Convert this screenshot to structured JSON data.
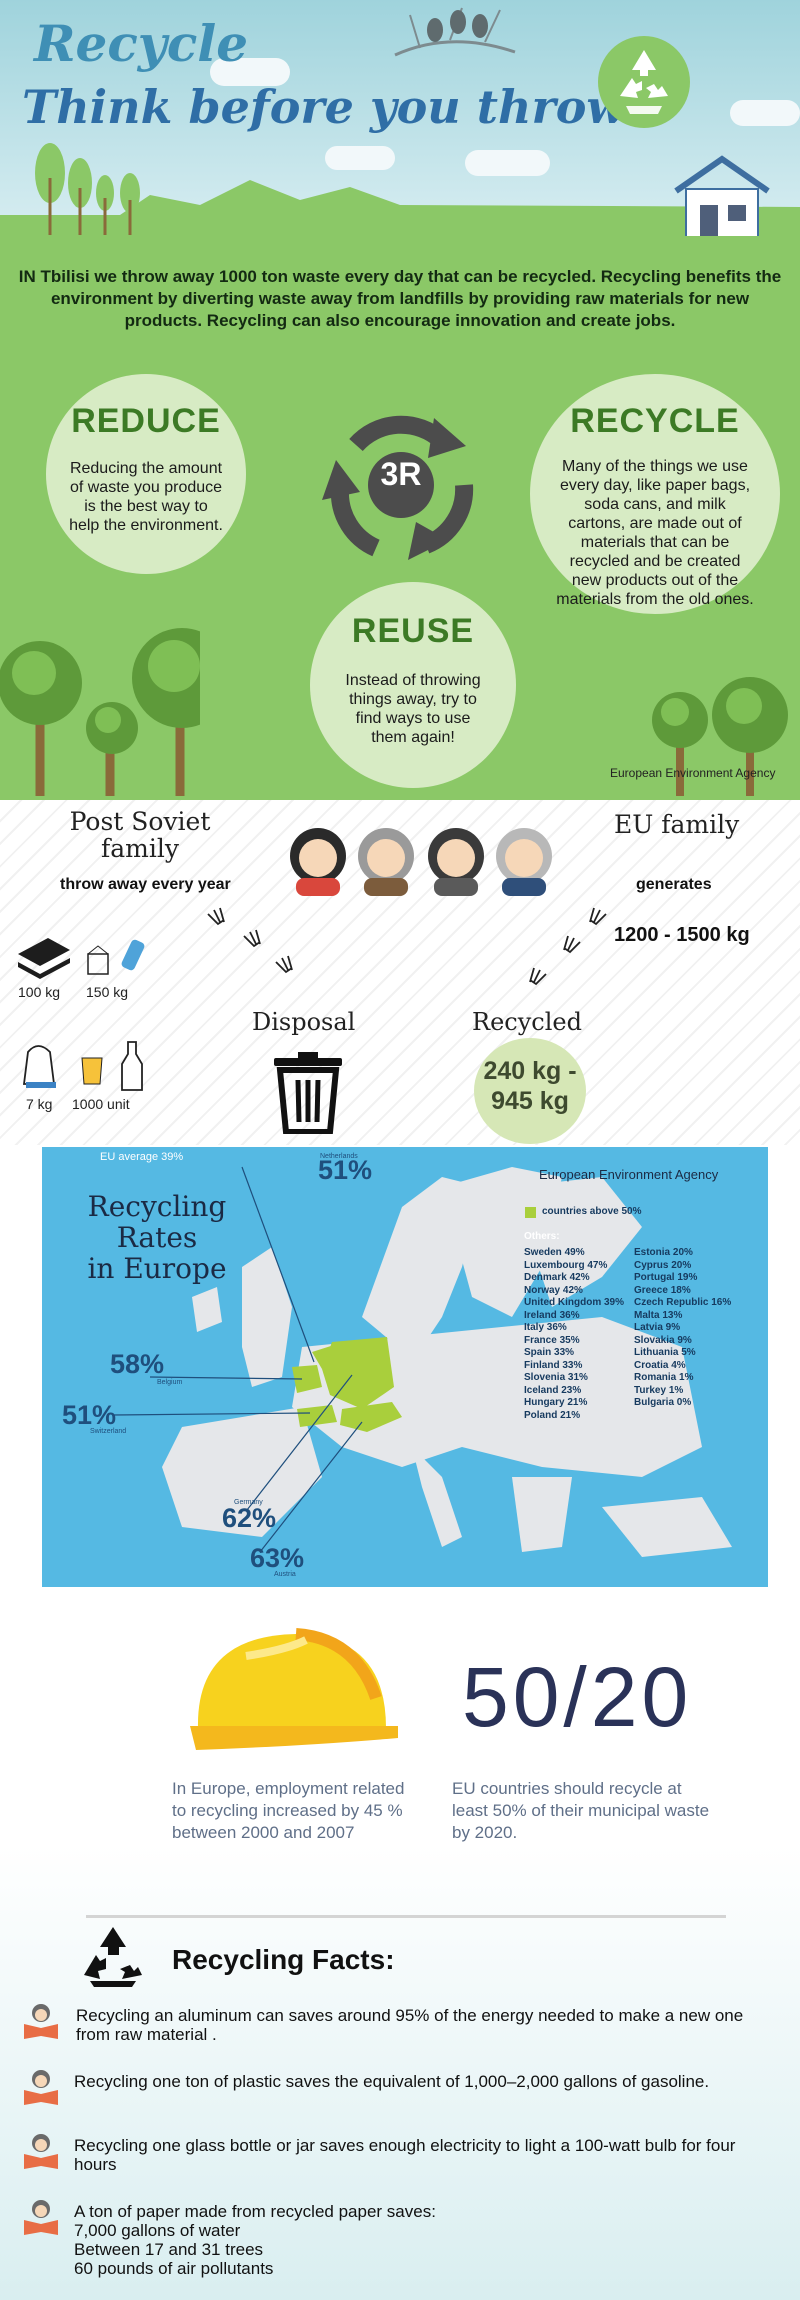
{
  "header": {
    "title": "Recycle",
    "subtitle": "Think before you throw"
  },
  "intro": "IN Tbilisi we throw away 1000 ton waste every day that can be recycled. Recycling benefits the environment by diverting waste away from landfills by providing raw materials for new products. Recycling can also encourage innovation and create jobs.",
  "three_r": {
    "center_label": "3R",
    "reduce": {
      "title": "REDUCE",
      "text": "Reducing the amount of waste you produce is the best way to help the environment."
    },
    "recycle": {
      "title": "RECYCLE",
      "text": "Many of the things we use every day, like paper bags, soda cans, and milk cartons, are made out of materials that can be recycled and be created new products out of the materials from the old ones."
    },
    "reuse": {
      "title": "REUSE",
      "text": "Instead of throwing things away, try to find ways to use them again!"
    },
    "source": "European Environment Agency"
  },
  "family": {
    "post_soviet": "Post Soviet family",
    "post_soviet_sub": "throw away every year",
    "eu": "EU family",
    "eu_sub": "generates",
    "eu_amount": "1200 - 1500 kg",
    "items": [
      {
        "label": "100 kg"
      },
      {
        "label": "150 kg"
      },
      {
        "label": "7 kg"
      },
      {
        "label": "1000 unit"
      }
    ],
    "disposal": "Disposal",
    "recycled": "Recycled",
    "recycled_amount_1": "240 kg -",
    "recycled_amount_2": "945 kg"
  },
  "map": {
    "title_1": "Recycling Rates",
    "title_2": "in Europe",
    "eu_average": "EU average 39%",
    "source": "European Environment Agency",
    "legend_above": "countries above 50%",
    "others_label": "Others:",
    "highlights": [
      {
        "pct": "51%",
        "country": "Netherlands"
      },
      {
        "pct": "58%",
        "country": "Belgium"
      },
      {
        "pct": "51%",
        "country": "Switzerland"
      },
      {
        "pct": "62%",
        "country": "Germany"
      },
      {
        "pct": "63%",
        "country": "Austria"
      }
    ],
    "others_col1": [
      "Sweden 49%",
      "Luxembourg 47%",
      "Denmark 42%",
      "Norway 42%",
      "United Kingdom 39%",
      "Ireland 36%",
      "Italy 36%",
      "France 35%",
      "Spain 33%",
      "Finland 33%",
      "Slovenia 31%",
      "Iceland 23%",
      "Hungary 21%",
      "Poland 21%"
    ],
    "others_col2": [
      "Estonia 20%",
      "Cyprus 20%",
      "Portugal 19%",
      "Greece 18%",
      "Czech Republic 16%",
      "Malta 13%",
      "Latvia 9%",
      "Slovakia 9%",
      "Lithuania 5%",
      "Croatia 4%",
      "Romania 1%",
      "Turkey 1%",
      "Bulgaria 0%"
    ]
  },
  "stats": {
    "employment_text": "In Europe, employment related to recycling increased by 45 % between 2000 and 2007",
    "big_number": "50/20",
    "target_text": "EU countries should recycle at least 50% of their municipal waste by 2020."
  },
  "facts": {
    "title": "Recycling Facts:",
    "items": [
      "Recycling an aluminum can saves around 95% of the energy needed to make a new one from raw material .",
      "Recycling one ton of plastic saves the equivalent of 1,000–2,000 gallons of gasoline.",
      "Recycling one glass bottle or jar saves enough electricity to light a 100-watt bulb for four hours",
      "A ton of paper made from recycled paper saves:"
    ],
    "paper_lines": [
      "7,000 gallons of water",
      "Between 17 and 31 trees",
      "60 pounds of air pollutants"
    ]
  },
  "colors": {
    "green": "#8bc867",
    "dark_green": "#3c7a25",
    "map_blue": "#55b9e3",
    "highlight": "#a9cf3c",
    "helmet": "#f7d21e"
  }
}
